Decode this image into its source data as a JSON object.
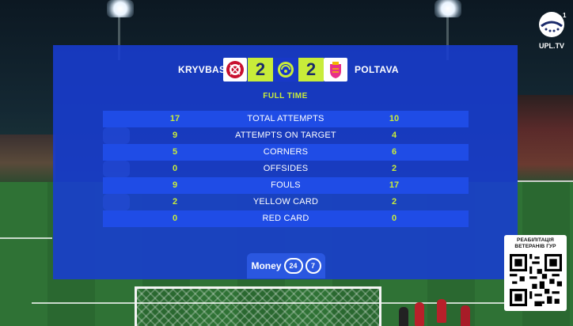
{
  "match": {
    "home_team": "KRYVBAS",
    "away_team": "POLTAVA",
    "home_score": "2",
    "away_score": "2",
    "status": "FULL TIME"
  },
  "stats": [
    {
      "label": "TOTAL ATTEMPTS",
      "home": "17",
      "away": "10"
    },
    {
      "label": "ATTEMPTS ON TARGET",
      "home": "9",
      "away": "4"
    },
    {
      "label": "CORNERS",
      "home": "5",
      "away": "6"
    },
    {
      "label": "OFFSIDES",
      "home": "0",
      "away": "2"
    },
    {
      "label": "FOULS",
      "home": "9",
      "away": "17"
    },
    {
      "label": "YELLOW CARD",
      "home": "2",
      "away": "2"
    },
    {
      "label": "RED CARD",
      "home": "0",
      "away": "0"
    }
  ],
  "sponsor": {
    "word": "Money",
    "num1": "24",
    "num2": "7"
  },
  "channel": {
    "name": "UPL.TV",
    "number": "1"
  },
  "promo": {
    "line1": "РЕАБІЛІТАЦІЯ",
    "line2": "ВЕТЕРАНІВ ГУР"
  },
  "colors": {
    "panel": "#183cd2",
    "accent": "#c8ec3a",
    "row": "#1f4ce6"
  },
  "icons": {
    "home_crest": "kryvbas-crest-icon",
    "away_crest": "poltava-crest-icon",
    "league": "upl-logo-icon",
    "qr": "qr-code-icon"
  }
}
